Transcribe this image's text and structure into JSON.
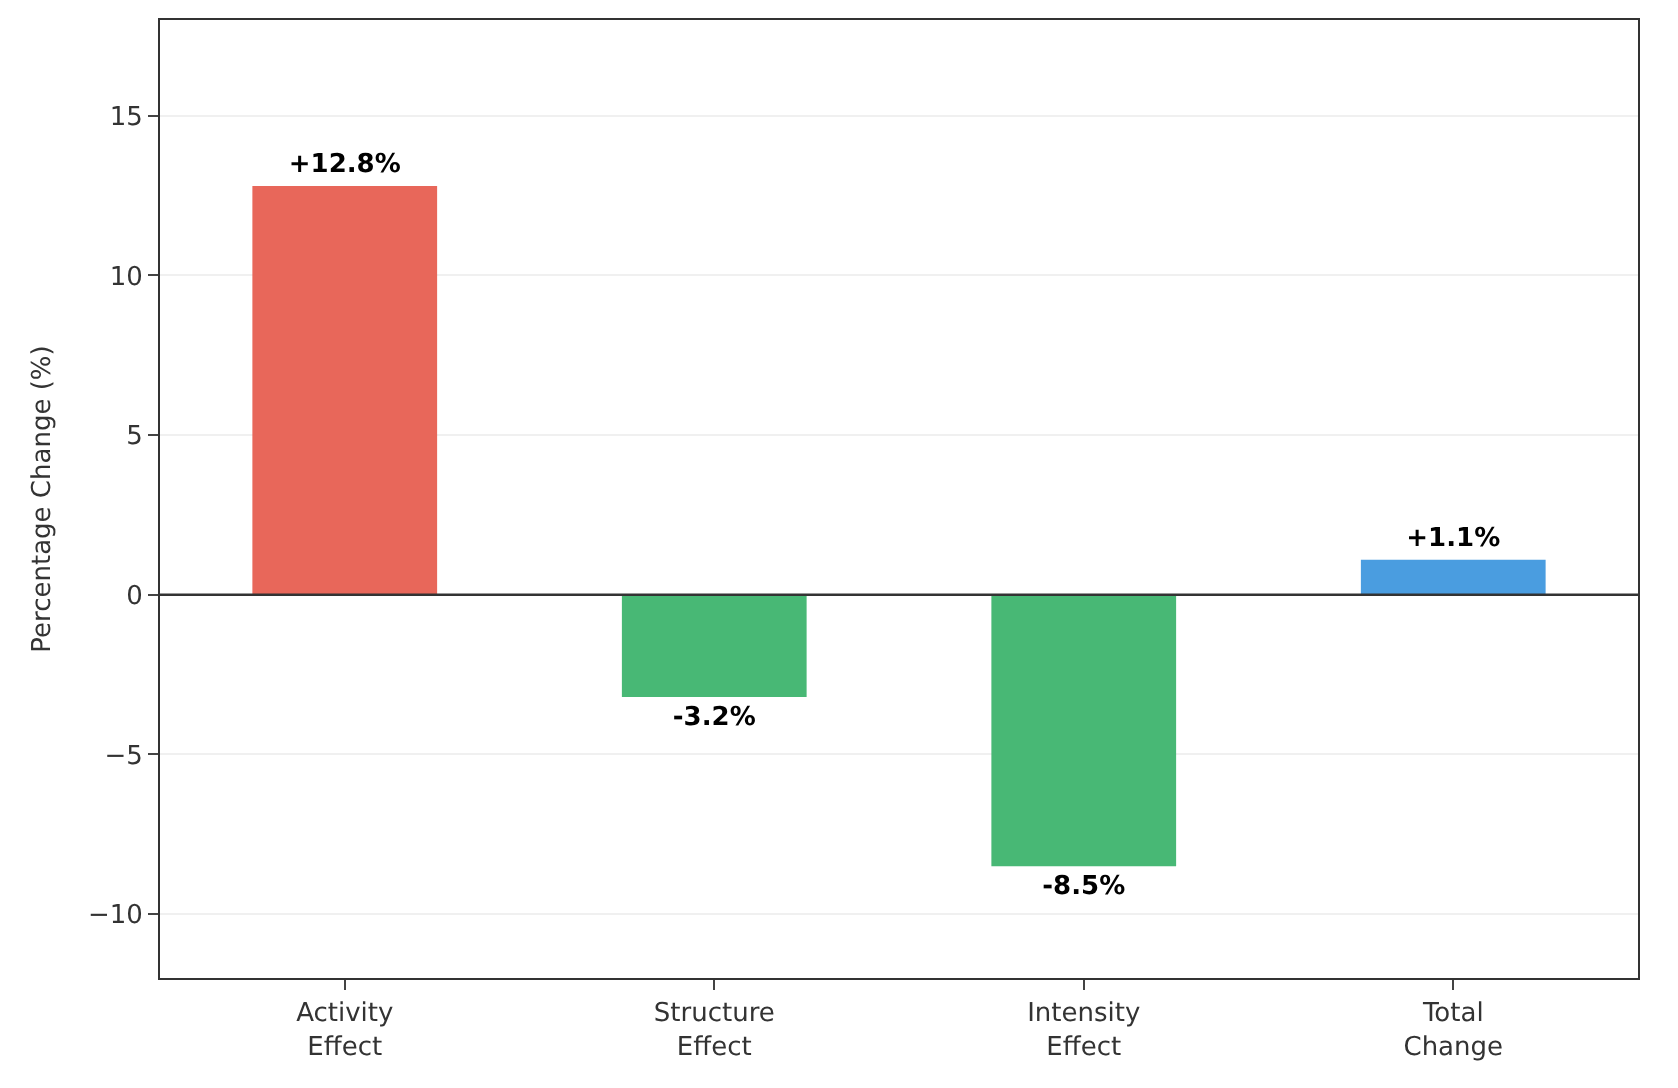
{
  "chart_data": {
    "type": "bar",
    "ylabel": "Percentage Change (%)",
    "categories": [
      "Activity Effect",
      "Structure Effect",
      "Intensity Effect",
      "Total Change"
    ],
    "values": [
      12.8,
      -3.2,
      -8.5,
      1.1
    ],
    "colors": [
      "#e8675a",
      "#48b875",
      "#48b875",
      "#4a9de0"
    ],
    "value_labels": [
      "+12.8%",
      "-3.2%",
      "-8.5%",
      "+1.1%"
    ],
    "ylim": [
      -12,
      18
    ],
    "yticks": [
      -10,
      -5,
      0,
      5,
      10,
      15
    ],
    "ref_lines": [
      {
        "axis": "y",
        "value": 0,
        "color": "#333333"
      }
    ],
    "grid": "y"
  }
}
